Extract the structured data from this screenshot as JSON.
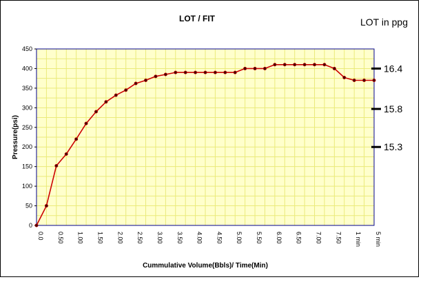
{
  "chart_data": {
    "type": "line",
    "title": "LOT / FIT",
    "xlabel": "Cummulative Volume(Bbls)/ Time(Min)",
    "ylabel": "Pressure(psi)",
    "ylim": [
      0,
      450
    ],
    "y_ticks": [
      "0",
      "50",
      "100",
      "150",
      "200",
      "250",
      "300",
      "350",
      "400",
      "450"
    ],
    "x_ticks": [
      "0.0",
      "0.50",
      "1.00",
      "1.50",
      "2.00",
      "2.50",
      "3.00",
      "3.50",
      "4.00",
      "4.50",
      "5.00",
      "5.50",
      "6.00",
      "6.50",
      "7.00",
      "7.50",
      "1 min",
      "5 min"
    ],
    "grid": true,
    "legend": "none",
    "series": [
      {
        "values": [
          0,
          50,
          152,
          182,
          220,
          260,
          290,
          315,
          332,
          345,
          362,
          370,
          380,
          385,
          390,
          390,
          390,
          390,
          390,
          390,
          390,
          400,
          400,
          400,
          410,
          410,
          410,
          410,
          410,
          410,
          400,
          377,
          370,
          370,
          370
        ],
        "color": "#cc0000"
      }
    ],
    "lot_axis": {
      "title": "LOT in ppg",
      "labels": [
        "16.4",
        "15.8",
        "15.3"
      ],
      "pressures": [
        400,
        297,
        200
      ]
    },
    "colors": {
      "plot_bg": "#ffffcc",
      "grid": "#eaea7a",
      "border": "#00008b",
      "line": "#cc0000",
      "marker": "#4a0000"
    }
  }
}
